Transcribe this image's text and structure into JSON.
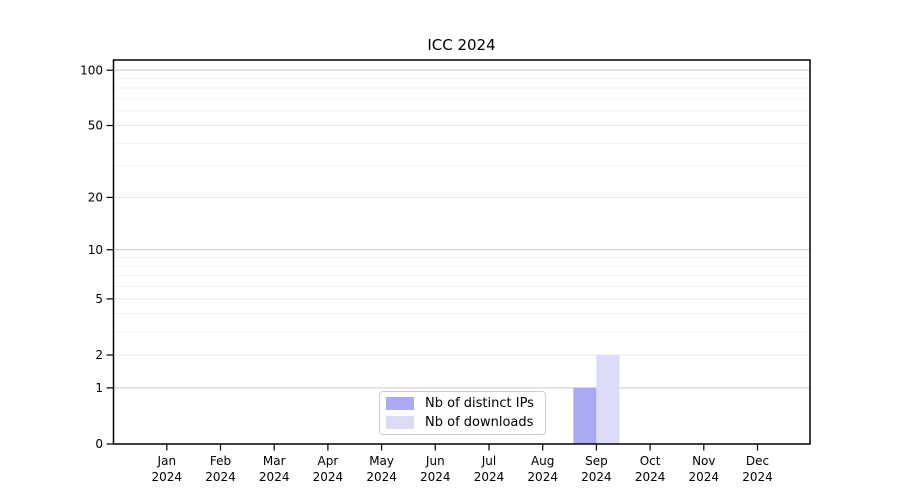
{
  "chart_data": {
    "type": "bar",
    "title": "ICC 2024",
    "xlabel": "",
    "ylabel": "",
    "year": "2024",
    "categories": [
      "Jan",
      "Feb",
      "Mar",
      "Apr",
      "May",
      "Jun",
      "Jul",
      "Aug",
      "Sep",
      "Oct",
      "Nov",
      "Dec"
    ],
    "series": [
      {
        "name": "Nb of distinct IPs",
        "color": "#aaaaf2",
        "values": [
          0,
          0,
          0,
          0,
          0,
          0,
          0,
          0,
          1,
          0,
          0,
          0
        ]
      },
      {
        "name": "Nb of downloads",
        "color": "#dcdcf8",
        "values": [
          0,
          0,
          0,
          0,
          0,
          0,
          0,
          0,
          2,
          0,
          0,
          0
        ]
      }
    ],
    "y_ticks": [
      0,
      1,
      2,
      5,
      10,
      20,
      50,
      100
    ],
    "yscale": "log1p",
    "ylim": [
      0,
      113.5
    ],
    "grid": true,
    "legend_position": "lower center",
    "colors": {
      "axis": "#000000",
      "grid_major": "#c9c9c9",
      "grid_mid": "#e7e7e7",
      "grid_minor": "#f1f1f1",
      "text": "#000000"
    }
  }
}
